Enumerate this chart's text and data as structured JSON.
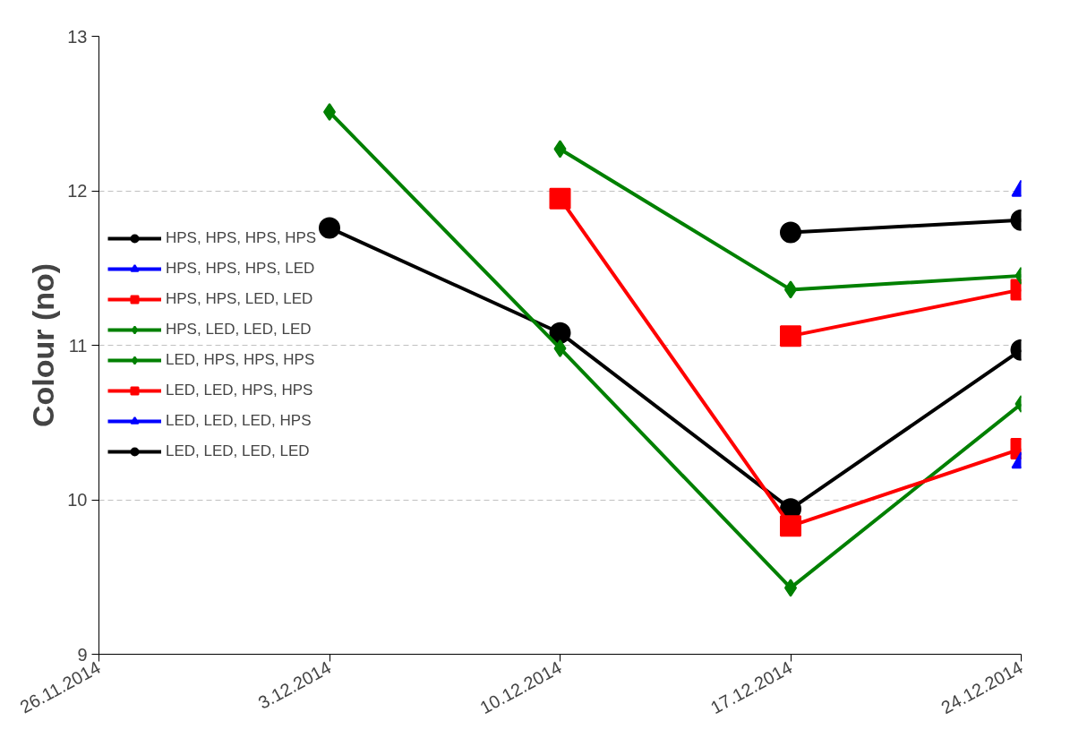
{
  "chart_data": {
    "type": "line",
    "ylabel": "Colour (no)",
    "x": [
      "2014-12-03",
      "2014-12-10",
      "2014-12-17",
      "2014-12-24"
    ],
    "xlim": [
      "2014-11-26",
      "2014-12-24"
    ],
    "xticks": [
      {
        "value": "2014-11-26",
        "label": "26.11.2014"
      },
      {
        "value": "2014-12-03",
        "label": "3.12.2014"
      },
      {
        "value": "2014-12-10",
        "label": "10.12.2014"
      },
      {
        "value": "2014-12-17",
        "label": "17.12.2014"
      },
      {
        "value": "2014-12-24",
        "label": "24.12.2014"
      }
    ],
    "ylim": [
      9,
      13
    ],
    "yticks": [
      9,
      10,
      11,
      12,
      13
    ],
    "grid": "y",
    "legend": "left",
    "line_style": "solid",
    "series": [
      {
        "name": "HPS, HPS, HPS, HPS",
        "color": "#000000",
        "marker": "circle",
        "values": [
          11.76,
          11.08,
          9.94,
          10.97
        ]
      },
      {
        "name": "HPS, HPS, HPS, LED",
        "color": "#0000ff",
        "marker": "triangle",
        "values": [
          null,
          null,
          null,
          12.0
        ]
      },
      {
        "name": "HPS, HPS, LED, LED",
        "color": "#ff0000",
        "marker": "square",
        "values": [
          null,
          null,
          11.06,
          11.36
        ]
      },
      {
        "name": "HPS, LED, LED, LED",
        "color": "#008000",
        "marker": "diamond",
        "values": [
          null,
          12.27,
          11.36,
          11.45
        ]
      },
      {
        "name": "LED, HPS, HPS, HPS",
        "color": "#008000",
        "marker": "diamond",
        "values": [
          12.51,
          10.98,
          9.43,
          10.62
        ]
      },
      {
        "name": "LED, LED, HPS, HPS",
        "color": "#ff0000",
        "marker": "square",
        "values": [
          null,
          11.95,
          9.83,
          10.33
        ]
      },
      {
        "name": "LED, LED, LED, HPS",
        "color": "#0000ff",
        "marker": "triangle",
        "values": [
          null,
          null,
          null,
          10.24
        ]
      },
      {
        "name": "LED, LED, LED, LED",
        "color": "#000000",
        "marker": "circle",
        "values": [
          null,
          null,
          11.73,
          11.81
        ]
      }
    ]
  }
}
